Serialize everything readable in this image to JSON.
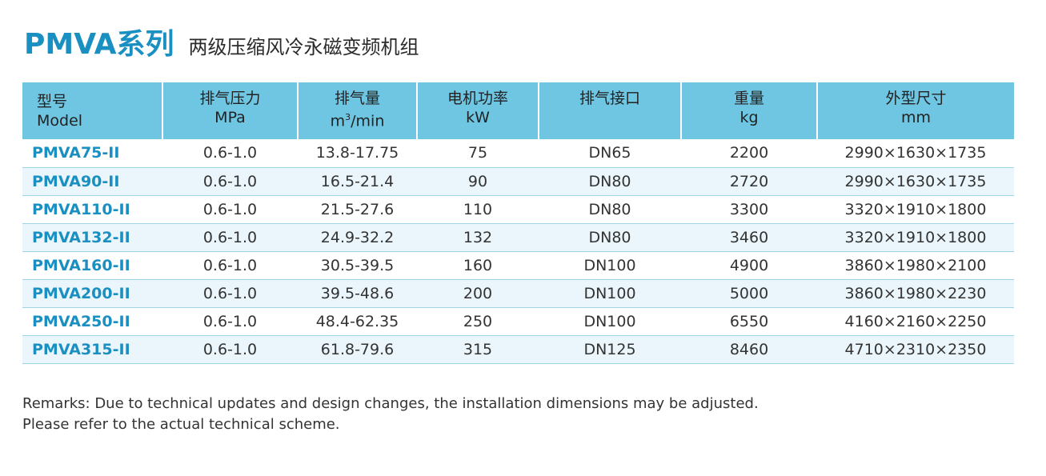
{
  "title": {
    "main": "PMVA系列",
    "subtitle": "两级压缩风冷永磁变频机组"
  },
  "table": {
    "headers": [
      {
        "cn": "型号",
        "en": "Model"
      },
      {
        "cn": "排气压力",
        "en": "MPa"
      },
      {
        "cn": "排气量",
        "en_pre": "m",
        "en_sup": "3",
        "en_post": "/min"
      },
      {
        "cn": "电机功率",
        "en": "kW"
      },
      {
        "cn": "排气接口",
        "en": ""
      },
      {
        "cn": "重量",
        "en": "kg"
      },
      {
        "cn": "外型尺寸",
        "en": "mm"
      }
    ],
    "rows": [
      {
        "model": "PMVA75-II",
        "pressure": "0.6-1.0",
        "flow": "13.8-17.75",
        "power": "75",
        "port": "DN65",
        "weight": "2200",
        "size": "2990×1630×1735"
      },
      {
        "model": "PMVA90-II",
        "pressure": "0.6-1.0",
        "flow": "16.5-21.4",
        "power": "90",
        "port": "DN80",
        "weight": "2720",
        "size": "2990×1630×1735"
      },
      {
        "model": "PMVA110-II",
        "pressure": "0.6-1.0",
        "flow": "21.5-27.6",
        "power": "110",
        "port": "DN80",
        "weight": "3300",
        "size": "3320×1910×1800"
      },
      {
        "model": "PMVA132-II",
        "pressure": "0.6-1.0",
        "flow": "24.9-32.2",
        "power": "132",
        "port": "DN80",
        "weight": "3460",
        "size": "3320×1910×1800"
      },
      {
        "model": "PMVA160-II",
        "pressure": "0.6-1.0",
        "flow": "30.5-39.5",
        "power": "160",
        "port": "DN100",
        "weight": "4900",
        "size": "3860×1980×2100"
      },
      {
        "model": "PMVA200-II",
        "pressure": "0.6-1.0",
        "flow": "39.5-48.6",
        "power": "200",
        "port": "DN100",
        "weight": "5000",
        "size": "3860×1980×2230"
      },
      {
        "model": "PMVA250-II",
        "pressure": "0.6-1.0",
        "flow": "48.4-62.35",
        "power": "250",
        "port": "DN100",
        "weight": "6550",
        "size": "4160×2160×2250"
      },
      {
        "model": "PMVA315-II",
        "pressure": "0.6-1.0",
        "flow": "61.8-79.6",
        "power": "315",
        "port": "DN125",
        "weight": "8460",
        "size": "4710×2310×2350"
      }
    ]
  },
  "remarks": {
    "line1": "Remarks: Due to technical updates and design changes, the installation dimensions may be adjusted.",
    "line2": "Please refer to the actual technical scheme."
  },
  "colors": {
    "accent": "#1a8fc1",
    "header_bg": "#6ec6e3",
    "row_alt_bg": "#eaf6fb",
    "row_border": "#9fd3e6"
  }
}
